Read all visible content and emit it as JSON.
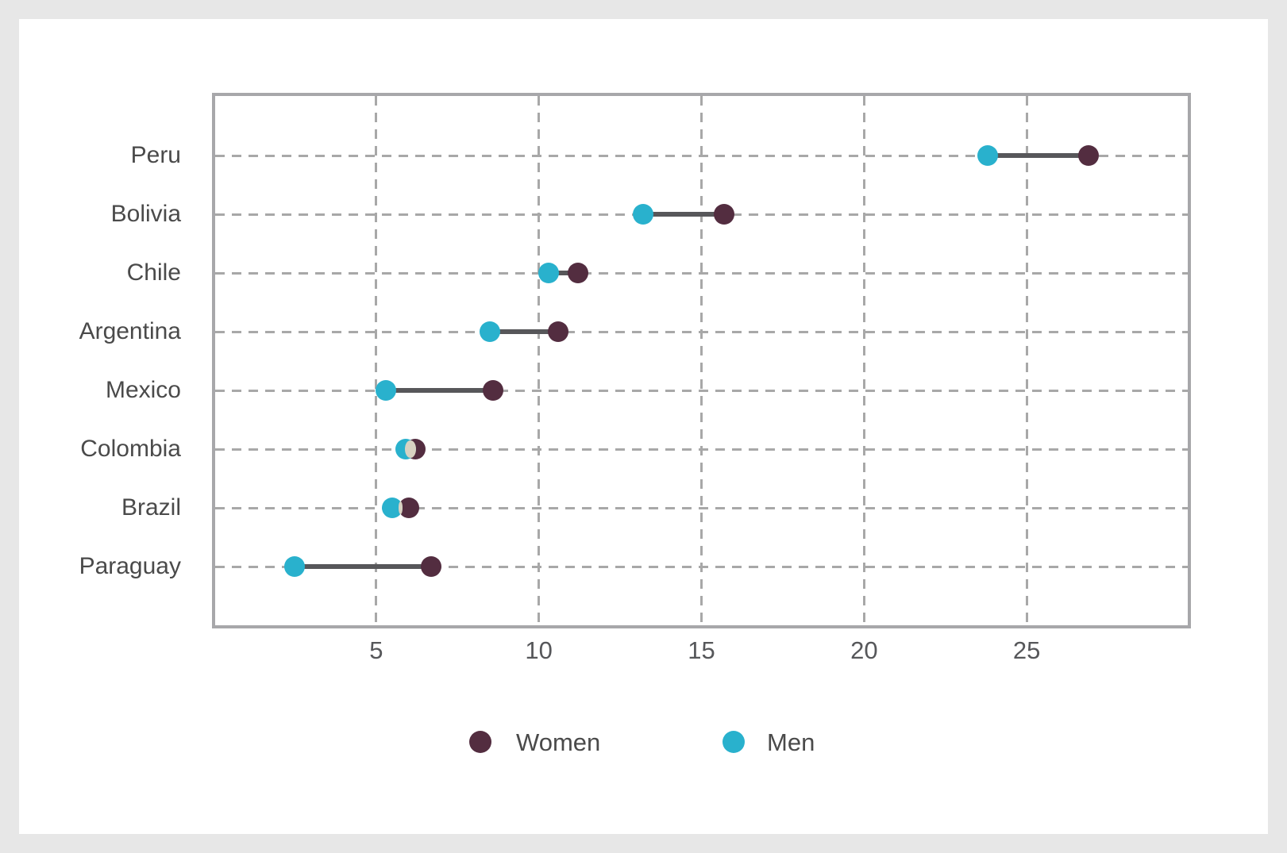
{
  "chart_data": {
    "type": "dumbbell",
    "orientation": "horizontal",
    "title": "",
    "categories": [
      "Peru",
      "Bolivia",
      "Chile",
      "Argentina",
      "Mexico",
      "Colombia",
      "Brazil",
      "Paraguay"
    ],
    "series": [
      {
        "name": "Women",
        "color": "#532d40",
        "values": [
          26.9,
          15.7,
          11.2,
          10.6,
          8.6,
          6.2,
          6.0,
          6.7
        ]
      },
      {
        "name": "Men",
        "color": "#29b1cd",
        "values": [
          23.8,
          13.2,
          10.3,
          8.5,
          5.3,
          5.9,
          5.5,
          2.5
        ]
      }
    ],
    "x_axis": {
      "ticks": [
        5,
        10,
        15,
        20,
        25
      ],
      "tick_labels": [
        "5",
        "10",
        "15",
        "20",
        "25"
      ],
      "range": [
        0,
        30
      ]
    },
    "y_axis": {
      "labels": [
        "Peru",
        "Bolivia",
        "Chile",
        "Argentina",
        "Mexico",
        "Colombia",
        "Brazil",
        "Paraguay"
      ]
    },
    "grid": {
      "style": "dashed",
      "color": "#a8a8a8",
      "border_color": "#a7a7aa"
    },
    "legend": {
      "position": "bottom",
      "entries": [
        {
          "label": "Women",
          "color": "#532d40"
        },
        {
          "label": "Men",
          "color": "#29b1cd"
        }
      ]
    },
    "connector_color": "#57575a",
    "overlap_highlight_color": "#d8d2c2",
    "background_color": "#ffffff",
    "page_background_color": "#e7e7e7"
  }
}
